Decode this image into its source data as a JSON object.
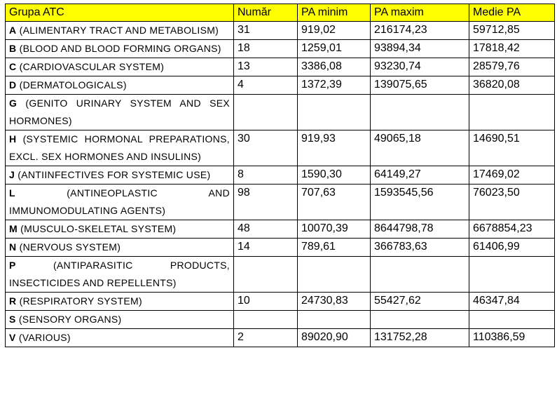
{
  "table": {
    "header": [
      "Grupa ATC",
      "Număr",
      "PA minim",
      "PA maxim",
      "Medie PA"
    ],
    "rows": [
      {
        "code": "A",
        "name": "(ALIMENTARY TRACT AND METABOLISM)",
        "count": "31",
        "min": "919,02",
        "max": "216174,23",
        "mean": "59712,85"
      },
      {
        "code": "B",
        "name": "(BLOOD AND BLOOD FORMING ORGANS)",
        "count": "18",
        "min": "1259,01",
        "max": "93894,34",
        "mean": "17818,42"
      },
      {
        "code": "C",
        "name": "(CARDIOVASCULAR SYSTEM)",
        "count": "13",
        "min": "3386,08",
        "max": "93230,74",
        "mean": "28579,76"
      },
      {
        "code": "D",
        "name": "(DERMATOLOGICALS)",
        "count": "4",
        "min": "1372,39",
        "max": "139075,65",
        "mean": "36820,08"
      },
      {
        "code": "G",
        "name": "(GENITO URINARY SYSTEM AND SEX HORMONES)"
      },
      {
        "code": "H",
        "name": "(SYSTEMIC HORMONAL PREPARATIONS, EXCL. SEX HORMONES AND INSULINS)",
        "count": "30",
        "min": "919,93",
        "max": "49065,18",
        "mean": "14690,51"
      },
      {
        "code": "J",
        "name": "(ANTIINFECTIVES FOR SYSTEMIC USE)",
        "count": "8",
        "min": "1590,30",
        "max": "64149,27",
        "mean": "17469,02"
      },
      {
        "code": "L",
        "name": "(ANTINEOPLASTIC AND IMMUNOMODULATING AGENTS)",
        "count": "98",
        "min": "707,63",
        "max": "1593545,56",
        "mean": "76023,50"
      },
      {
        "code": "M",
        "name": "(MUSCULO-SKELETAL SYSTEM)",
        "count": "48",
        "min": "10070,39",
        "max": "8644798,78",
        "mean": "6678854,23"
      },
      {
        "code": "N",
        "name": "(NERVOUS SYSTEM)",
        "count": "14",
        "min": "789,61",
        "max": "366783,63",
        "mean": "61406,99"
      },
      {
        "code": "P",
        "name": "(ANTIPARASITIC PRODUCTS, INSECTICIDES AND REPELLENTS)"
      },
      {
        "code": "R",
        "name": "(RESPIRATORY SYSTEM)",
        "count": "10",
        "min": "24730,83",
        "max": "55427,62",
        "mean": "46347,84"
      },
      {
        "code": "S",
        "name": "(SENSORY ORGANS)"
      },
      {
        "code": "V",
        "name": "(VARIOUS)",
        "count": "2",
        "min": "89020,90",
        "max": "131752,28",
        "mean": "110386,59"
      }
    ]
  }
}
